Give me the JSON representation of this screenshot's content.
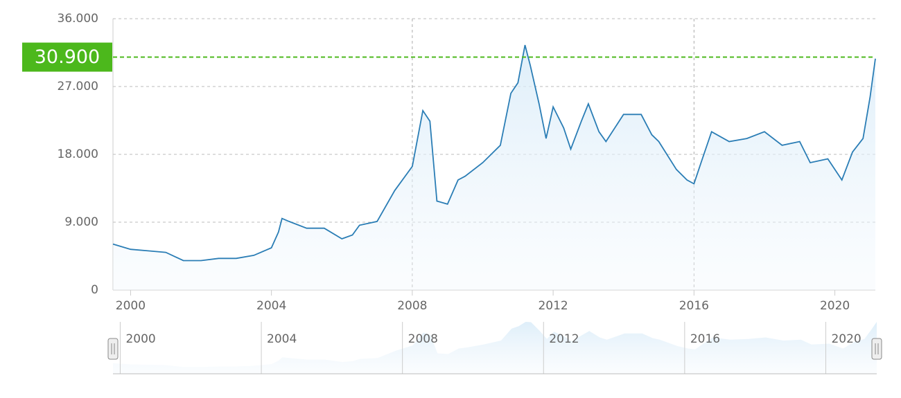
{
  "chart_data": {
    "type": "line",
    "series": [
      {
        "color": "#2a7db5",
        "x": [
          1999.5,
          2000,
          2000.5,
          2001,
          2001.5,
          2002,
          2002.5,
          2003,
          2003.5,
          2004,
          2004.2,
          2004.3,
          2004.5,
          2005,
          2005.5,
          2006,
          2006.3,
          2006.5,
          2007,
          2007.5,
          2008,
          2008.3,
          2008.5,
          2008.7,
          2009,
          2009.3,
          2009.5,
          2010,
          2010.5,
          2010.8,
          2011,
          2011.2,
          2011.35,
          2011.6,
          2011.8,
          2012,
          2012.3,
          2012.5,
          2012.8,
          2013,
          2013.3,
          2013.5,
          2014,
          2014.5,
          2014.8,
          2015,
          2015.5,
          2015.8,
          2016,
          2016.2,
          2016.5,
          2017,
          2017.5,
          2018,
          2018.5,
          2019,
          2019.3,
          2019.8,
          2020.2,
          2020.5,
          2020.8,
          2021,
          2021.15
        ],
        "values": [
          6.1,
          5.4,
          5.2,
          5.0,
          3.9,
          3.9,
          4.2,
          4.2,
          4.6,
          5.6,
          7.7,
          9.5,
          9.1,
          8.2,
          8.2,
          6.8,
          7.3,
          8.6,
          9.1,
          13.2,
          16.4,
          23.8,
          22.4,
          11.8,
          11.4,
          14.6,
          15.1,
          16.9,
          19.2,
          26.1,
          27.5,
          32.5,
          29.8,
          24.7,
          20.1,
          24.3,
          21.5,
          18.7,
          22.4,
          24.7,
          21.0,
          19.7,
          23.3,
          23.3,
          20.6,
          19.7,
          16.0,
          14.6,
          14.1,
          16.9,
          21.0,
          19.7,
          20.1,
          21.0,
          19.2,
          19.7,
          16.9,
          17.4,
          14.6,
          18.3,
          20.1,
          25.6,
          30.7
        ]
      }
    ],
    "xlim": [
      1999.5,
      2021.15
    ],
    "xticks": [
      2000,
      2004,
      2008,
      2012,
      2016,
      2020
    ],
    "ylim": [
      0,
      36
    ],
    "yticks": [
      0,
      {
        "value": 9,
        "label": "9.000"
      },
      {
        "value": 18,
        "label": "18.000"
      },
      {
        "value": 27,
        "label": "27.000"
      },
      {
        "value": 36,
        "label": "36.000"
      }
    ],
    "current": {
      "value": 30.9,
      "label": "30.900",
      "color": "#4cb81c"
    }
  }
}
